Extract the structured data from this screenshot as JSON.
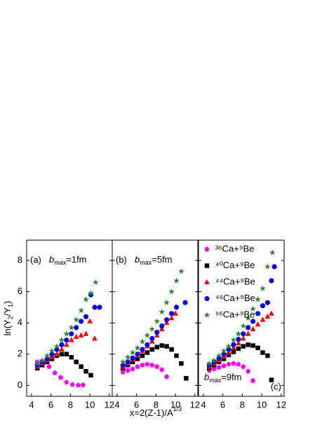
{
  "chart_data": [
    {
      "type": "scatter",
      "panel_label": "(a)",
      "label_corner": "upper left",
      "bmax": {
        "symbol": "b",
        "subscript": "max",
        "text": "=1fm"
      },
      "bmax_corner": "upper left",
      "y_label": {
        "text": "ln(Y",
        "sub1": "2",
        "mid": "/Y",
        "sub2": "1",
        "end": ")"
      },
      "xlim": [
        3.5,
        12.3
      ],
      "ylim": [
        -0.7,
        9.3
      ],
      "xticks": [
        4,
        6,
        8,
        10,
        12
      ],
      "yticks": [
        0,
        2,
        4,
        6,
        8
      ],
      "show_ytick_labels": true,
      "series": [
        {
          "color": "#ff00ff",
          "marker": "pentagon",
          "x": [
            4.6,
            5.2,
            5.8,
            6.4,
            7.0,
            7.6,
            8.2,
            8.8,
            9.3
          ],
          "values": [
            1.5,
            1.4,
            1.2,
            0.8,
            0.5,
            0.2,
            0.05,
            0.02,
            0.02
          ]
        },
        {
          "color": "#000000",
          "marker": "square",
          "x": [
            4.6,
            5.1,
            5.6,
            6.1,
            6.6,
            7.1,
            7.6,
            8.1,
            8.6,
            9.1,
            9.6,
            10.1
          ],
          "values": [
            1.1,
            1.3,
            1.5,
            1.7,
            1.9,
            2.0,
            2.0,
            1.8,
            1.5,
            1.2,
            0.9,
            0.65
          ]
        },
        {
          "color": "#ff0000",
          "marker": "triangle",
          "x": [
            4.6,
            5.1,
            5.6,
            6.1,
            6.6,
            7.1,
            7.6,
            8.1,
            8.6,
            9.1,
            9.6,
            10.0,
            10.5
          ],
          "values": [
            1.2,
            1.4,
            1.6,
            1.8,
            2.0,
            2.3,
            2.6,
            2.9,
            3.1,
            3.2,
            3.3,
            4.1,
            3.0
          ]
        },
        {
          "color": "#0000ff",
          "marker": "circle",
          "x": [
            4.6,
            5.1,
            5.6,
            6.1,
            6.6,
            7.1,
            7.6,
            8.1,
            8.6,
            9.1,
            9.6,
            10.1,
            10.5,
            11.0
          ],
          "values": [
            1.3,
            1.5,
            1.7,
            2.0,
            2.3,
            2.6,
            2.9,
            3.3,
            3.7,
            4.1,
            4.4,
            5.8,
            5.0,
            5.0
          ]
        },
        {
          "color": "#228b22",
          "marker": "star",
          "x": [
            4.6,
            5.1,
            5.6,
            6.1,
            6.6,
            7.1,
            7.6,
            8.1,
            8.6,
            9.1,
            9.6,
            10.1,
            10.6
          ],
          "values": [
            1.4,
            1.6,
            1.9,
            2.2,
            2.5,
            2.9,
            3.3,
            3.7,
            4.2,
            4.8,
            5.5,
            5.9,
            6.6
          ]
        }
      ]
    },
    {
      "type": "scatter",
      "panel_label": "(b)",
      "label_corner": "upper left",
      "bmax": {
        "symbol": "b",
        "subscript": "max",
        "text": "=5fm"
      },
      "bmax_corner": "upper left",
      "xlim": [
        3.5,
        12.3
      ],
      "ylim": [
        -0.7,
        9.3
      ],
      "xticks": [
        4,
        6,
        8,
        10,
        12
      ],
      "yticks": [
        0,
        2,
        4,
        6,
        8
      ],
      "show_ytick_labels": false,
      "x_label": {
        "text": "x=2(Z-1)/A",
        "superscript": "1/3"
      },
      "series": [
        {
          "color": "#ff00ff",
          "marker": "pentagon",
          "x": [
            4.6,
            5.1,
            5.6,
            6.1,
            6.6,
            7.1,
            7.6,
            8.1,
            8.6,
            9.1
          ],
          "values": [
            0.85,
            0.95,
            1.05,
            1.2,
            1.3,
            1.35,
            1.3,
            1.2,
            1.0,
            0.55
          ]
        },
        {
          "color": "#000000",
          "marker": "square",
          "x": [
            4.6,
            5.1,
            5.6,
            6.1,
            6.6,
            7.1,
            7.6,
            8.1,
            8.6,
            9.1,
            9.6,
            10.1,
            10.6,
            11.1
          ],
          "values": [
            1.1,
            1.3,
            1.5,
            1.7,
            1.9,
            2.1,
            2.3,
            2.45,
            2.55,
            2.5,
            2.3,
            1.9,
            1.4,
            0.45
          ]
        },
        {
          "color": "#ff0000",
          "marker": "triangle",
          "x": [
            4.6,
            5.1,
            5.6,
            6.1,
            6.6,
            7.1,
            7.6,
            8.1,
            8.6,
            9.1,
            9.6,
            10.0
          ],
          "values": [
            1.2,
            1.4,
            1.65,
            1.9,
            2.2,
            2.5,
            2.8,
            3.2,
            3.6,
            4.0,
            4.3,
            4.6
          ]
        },
        {
          "color": "#0000ff",
          "marker": "circle",
          "x": [
            4.6,
            5.1,
            5.6,
            6.1,
            6.6,
            7.1,
            7.6,
            8.1,
            8.6,
            9.1,
            9.6,
            10.1,
            11.0
          ],
          "values": [
            1.3,
            1.5,
            1.75,
            2.0,
            2.3,
            2.6,
            3.0,
            3.4,
            3.8,
            4.2,
            4.6,
            5.0,
            5.3
          ]
        },
        {
          "color": "#228b22",
          "marker": "star",
          "x": [
            4.6,
            5.1,
            5.6,
            6.1,
            6.6,
            7.1,
            7.6,
            8.1,
            8.6,
            9.1,
            9.6,
            10.1,
            10.6
          ],
          "values": [
            1.5,
            1.8,
            2.1,
            2.4,
            2.8,
            3.2,
            3.6,
            4.1,
            4.7,
            5.3,
            6.0,
            6.7,
            7.3
          ]
        }
      ]
    },
    {
      "type": "scatter",
      "panel_label": "(c)",
      "label_corner": "lower right",
      "bmax": {
        "symbol": "b",
        "subscript": "max",
        "text": "=9fm"
      },
      "bmax_corner": "lower left",
      "xlim": [
        3.5,
        12.3
      ],
      "ylim": [
        -0.7,
        9.3
      ],
      "xticks": [
        4,
        6,
        8,
        10,
        12
      ],
      "yticks": [
        0,
        2,
        4,
        6,
        8
      ],
      "show_ytick_labels": false,
      "legend": "upper left",
      "series": [
        {
          "name": "³⁶Ca+⁹Be",
          "color": "#ff00ff",
          "marker": "pentagon",
          "x": [
            4.6,
            5.1,
            5.6,
            6.1,
            6.6,
            7.1,
            7.6,
            8.1,
            8.6,
            9.1
          ],
          "values": [
            0.95,
            1.05,
            1.15,
            1.25,
            1.35,
            1.4,
            1.35,
            1.2,
            0.9,
            0.3
          ]
        },
        {
          "name": "⁴⁰Ca+⁹Be",
          "color": "#000000",
          "marker": "square",
          "x": [
            4.6,
            5.1,
            5.6,
            6.1,
            6.6,
            7.1,
            7.6,
            8.1,
            8.6,
            9.1,
            9.6,
            10.1,
            10.6,
            11.0
          ],
          "values": [
            1.1,
            1.3,
            1.5,
            1.7,
            1.95,
            2.15,
            2.35,
            2.5,
            2.6,
            2.55,
            2.4,
            2.1,
            1.9,
            0.35
          ]
        },
        {
          "name": "⁴⁴Ca+⁹Be",
          "color": "#ff0000",
          "marker": "triangle",
          "x": [
            4.6,
            5.1,
            5.6,
            6.1,
            6.6,
            7.1,
            7.6,
            8.1,
            8.6,
            9.1,
            9.6,
            10.1,
            10.6,
            11.0
          ],
          "values": [
            1.2,
            1.4,
            1.6,
            1.85,
            2.1,
            2.4,
            2.7,
            3.0,
            3.3,
            3.6,
            3.9,
            4.2,
            4.4,
            4.6
          ]
        },
        {
          "name": "⁴⁸Ca+⁹Be",
          "color": "#0000ff",
          "marker": "circle",
          "x": [
            4.6,
            5.1,
            5.6,
            6.1,
            6.6,
            7.1,
            7.6,
            8.1,
            8.6,
            9.1,
            9.6,
            10.1,
            10.6,
            11.0,
            11.3
          ],
          "values": [
            1.3,
            1.5,
            1.75,
            2.0,
            2.3,
            2.6,
            2.95,
            3.3,
            3.7,
            4.1,
            4.6,
            5.1,
            5.3,
            6.7,
            7.6
          ]
        },
        {
          "name": "⁵⁶Ca+⁹Be",
          "color": "#228b22",
          "marker": "star",
          "x": [
            4.6,
            5.1,
            5.6,
            6.1,
            6.6,
            7.1,
            7.6,
            8.1,
            8.6,
            9.1,
            9.6,
            10.1,
            10.6,
            11.1
          ],
          "values": [
            1.4,
            1.6,
            1.9,
            2.2,
            2.5,
            2.9,
            3.3,
            3.8,
            4.3,
            4.9,
            5.5,
            6.2,
            7.6,
            8.5
          ]
        }
      ]
    }
  ]
}
